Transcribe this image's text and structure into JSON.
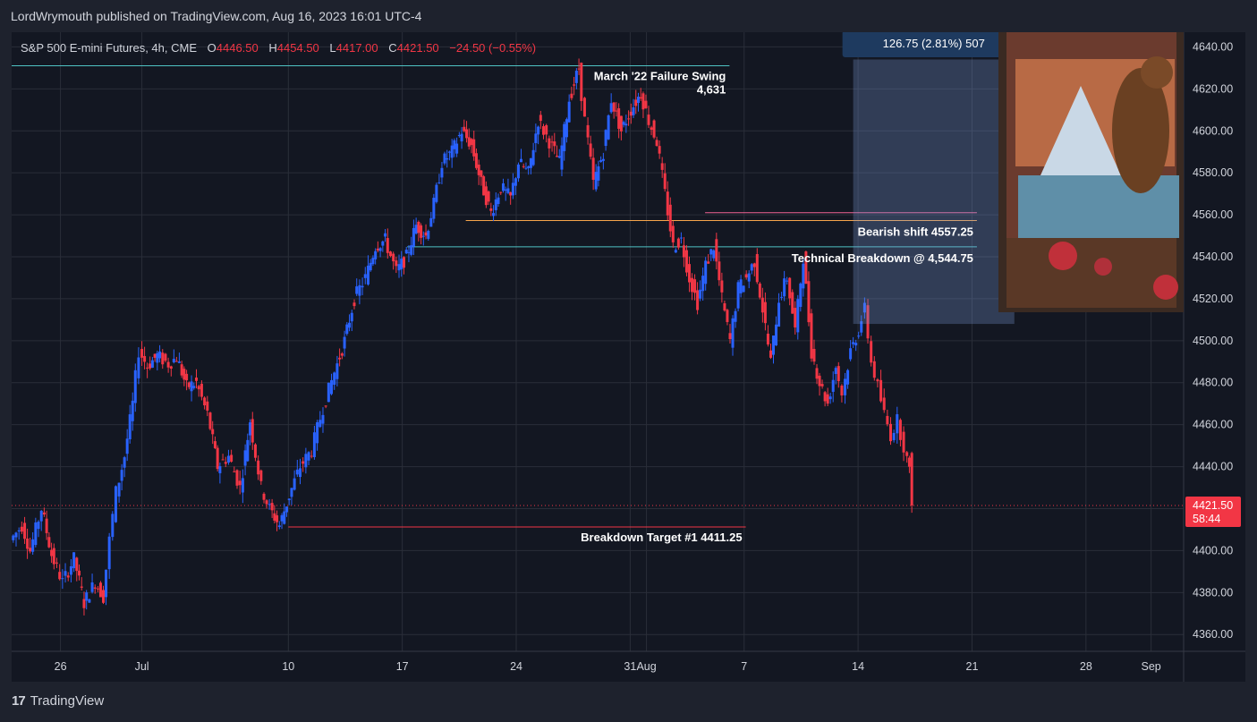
{
  "publisher": "LordWrymouth published on TradingView.com, Aug 16, 2023 16:01 UTC-4",
  "footer": {
    "brand": "TradingView"
  },
  "colors": {
    "up": "#2962ff",
    "down": "#f23645",
    "bg": "#131722",
    "grid": "#2a2e39",
    "accent_orange": "#f7a54b",
    "accent_teal": "#4fc3c4",
    "accent_pink": "#f06292"
  },
  "chart_data": {
    "type": "candlestick",
    "symbol": "S&P 500 E-mini Futures, 4h, CME",
    "ohlc": {
      "o_label": "O",
      "o": "4446.50",
      "h_label": "H",
      "h": "4454.50",
      "l_label": "L",
      "l": "4417.00",
      "c_label": "C",
      "c": "4421.50",
      "change": "−24.50 (−0.55%)"
    },
    "ylim": [
      4352,
      4647
    ],
    "y_ticks": [
      "4640.00",
      "4620.00",
      "4600.00",
      "4580.00",
      "4560.00",
      "4540.00",
      "4520.00",
      "4500.00",
      "4480.00",
      "4460.00",
      "4440.00",
      "4420.00",
      "4400.00",
      "4380.00",
      "4360.00"
    ],
    "x_ticks": [
      {
        "label": "26",
        "t": 26
      },
      {
        "label": "Jul",
        "t": 31
      },
      {
        "label": "10",
        "t": 40
      },
      {
        "label": "17",
        "t": 47
      },
      {
        "label": "24",
        "t": 54
      },
      {
        "label": "31",
        "t": 61
      },
      {
        "label": "Aug",
        "t": 62
      },
      {
        "label": "7",
        "t": 68
      },
      {
        "label": "14",
        "t": 75
      },
      {
        "label": "21",
        "t": 82
      },
      {
        "label": "28",
        "t": 89
      },
      {
        "label": "Sep",
        "t": 93
      }
    ],
    "x_range": [
      23,
      95
    ],
    "price_path": [
      [
        23.1,
        4405
      ],
      [
        23.8,
        4412
      ],
      [
        24.3,
        4400
      ],
      [
        25.0,
        4420
      ],
      [
        25.6,
        4398
      ],
      [
        26.3,
        4385
      ],
      [
        27.0,
        4396
      ],
      [
        27.6,
        4375
      ],
      [
        28.3,
        4385
      ],
      [
        28.8,
        4378
      ],
      [
        29.2,
        4405
      ],
      [
        29.6,
        4428
      ],
      [
        30.1,
        4445
      ],
      [
        30.6,
        4470
      ],
      [
        31.0,
        4495
      ],
      [
        31.5,
        4488
      ],
      [
        32.1,
        4493
      ],
      [
        32.8,
        4489
      ],
      [
        33.3,
        4492
      ],
      [
        33.9,
        4478
      ],
      [
        34.5,
        4480
      ],
      [
        35.2,
        4465
      ],
      [
        35.8,
        4440
      ],
      [
        36.5,
        4445
      ],
      [
        37.2,
        4430
      ],
      [
        37.8,
        4462
      ],
      [
        38.5,
        4430
      ],
      [
        39.0,
        4420
      ],
      [
        39.6,
        4412
      ],
      [
        40.2,
        4426
      ],
      [
        40.9,
        4440
      ],
      [
        41.6,
        4448
      ],
      [
        42.3,
        4468
      ],
      [
        43.0,
        4485
      ],
      [
        43.6,
        4500
      ],
      [
        44.2,
        4520
      ],
      [
        44.9,
        4530
      ],
      [
        45.5,
        4545
      ],
      [
        46.1,
        4548
      ],
      [
        46.8,
        4533
      ],
      [
        47.4,
        4540
      ],
      [
        48.0,
        4555
      ],
      [
        48.6,
        4550
      ],
      [
        49.1,
        4565
      ],
      [
        49.6,
        4585
      ],
      [
        50.2,
        4590
      ],
      [
        50.8,
        4600
      ],
      [
        51.4,
        4593
      ],
      [
        52.0,
        4575
      ],
      [
        52.6,
        4561
      ],
      [
        53.2,
        4573
      ],
      [
        53.8,
        4568
      ],
      [
        54.3,
        4585
      ],
      [
        54.9,
        4580
      ],
      [
        55.5,
        4605
      ],
      [
        56.2,
        4595
      ],
      [
        56.8,
        4585
      ],
      [
        57.4,
        4615
      ],
      [
        58.0,
        4630
      ],
      [
        58.4,
        4605
      ],
      [
        58.9,
        4575
      ],
      [
        59.5,
        4590
      ],
      [
        60.0,
        4615
      ],
      [
        60.6,
        4600
      ],
      [
        61.2,
        4610
      ],
      [
        61.8,
        4618
      ],
      [
        62.3,
        4605
      ],
      [
        62.8,
        4595
      ],
      [
        63.3,
        4570
      ],
      [
        63.8,
        4545
      ],
      [
        64.3,
        4548
      ],
      [
        64.8,
        4530
      ],
      [
        65.3,
        4518
      ],
      [
        65.8,
        4536
      ],
      [
        66.3,
        4545
      ],
      [
        66.8,
        4520
      ],
      [
        67.3,
        4500
      ],
      [
        67.8,
        4525
      ],
      [
        68.3,
        4530
      ],
      [
        68.8,
        4538
      ],
      [
        69.3,
        4515
      ],
      [
        69.8,
        4490
      ],
      [
        70.3,
        4520
      ],
      [
        70.8,
        4530
      ],
      [
        71.3,
        4505
      ],
      [
        71.8,
        4540
      ],
      [
        72.3,
        4495
      ],
      [
        72.8,
        4480
      ],
      [
        73.3,
        4470
      ],
      [
        73.8,
        4488
      ],
      [
        74.2,
        4475
      ],
      [
        74.7,
        4495
      ],
      [
        75.2,
        4505
      ],
      [
        75.6,
        4515
      ],
      [
        76.0,
        4490
      ],
      [
        76.4,
        4478
      ],
      [
        76.8,
        4465
      ],
      [
        77.2,
        4455
      ],
      [
        77.6,
        4462
      ],
      [
        78.0,
        4450
      ],
      [
        78.3,
        4437
      ],
      [
        78.5,
        4421.5
      ]
    ],
    "levels": [
      {
        "name": "march-22-failure-swing",
        "price": 4631,
        "t0": 23,
        "t1": 67.1,
        "color": "#4fc3c4",
        "label_lines": [
          "March '22 Failure Swing",
          "4,631"
        ]
      },
      {
        "name": "bearish-shift",
        "price": 4557.25,
        "t0": 50.9,
        "t1": 82.3,
        "color": "#f7a54b",
        "label": "Bearish shift 4557.25"
      },
      {
        "name": "bearish-shift-pink",
        "price": 4561,
        "t0": 65.6,
        "t1": 82.3,
        "color": "#f06292"
      },
      {
        "name": "technical-breakdown",
        "price": 4544.75,
        "t0": 47.3,
        "t1": 82.3,
        "color": "#4fc3c4",
        "label": "Technical Breakdown @ 4,544.75"
      },
      {
        "name": "breakdown-target",
        "price": 4411.25,
        "t0": 40.0,
        "t1": 68.1,
        "color": "#f23645",
        "label": "Breakdown Target #1 4411.25"
      }
    ],
    "measure": {
      "label": "126.75 (2.81%) 507",
      "t0": 74.7,
      "t1": 84.6,
      "p_top": 4634,
      "p_bottom": 4508
    },
    "last_price": {
      "value": "4421.50",
      "countdown": "58:44",
      "price": 4421.5
    }
  }
}
